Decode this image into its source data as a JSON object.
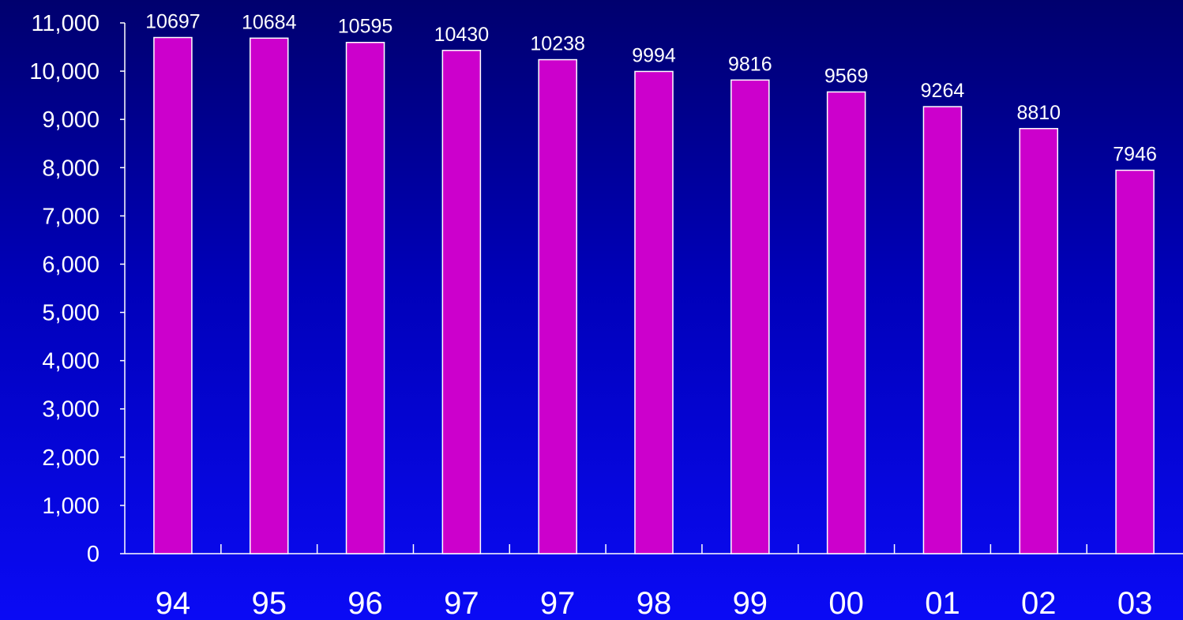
{
  "chart_data": {
    "type": "bar",
    "categories": [
      "94",
      "95",
      "96",
      "97",
      "97",
      "98",
      "99",
      "00",
      "01",
      "02",
      "03"
    ],
    "values": [
      10697,
      10684,
      10595,
      10430,
      10238,
      9994,
      9816,
      9569,
      9264,
      8810,
      7946
    ],
    "data_labels": [
      "10697",
      "10684",
      "10595",
      "10430",
      "10238",
      "9994",
      "9816",
      "9569",
      "9264",
      "8810",
      "7946"
    ],
    "yticks": [
      0,
      1000,
      2000,
      3000,
      4000,
      5000,
      6000,
      7000,
      8000,
      9000,
      10000,
      11000
    ],
    "ytick_labels": [
      "0",
      "1,000",
      "2,000",
      "3,000",
      "4,000",
      "5,000",
      "6,000",
      "7,000",
      "8,000",
      "9,000",
      "10,000",
      "11,000"
    ],
    "ylim": [
      0,
      11000
    ],
    "grid": false,
    "legend": "none",
    "title": "",
    "xlabel": "",
    "ylabel": "",
    "colors": {
      "bar": "#cc00cc",
      "bar_border": "#ffffff",
      "text": "#ffffff",
      "background_top": "#00006e",
      "background_bottom": "#0a0af5"
    }
  }
}
